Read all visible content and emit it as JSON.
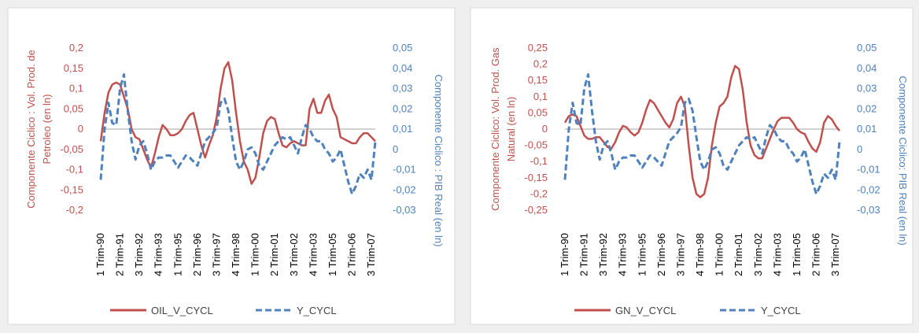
{
  "chart_data": [
    {
      "type": "line",
      "categories": [
        "1 Trim-90",
        null,
        null,
        null,
        null,
        "2 Trim-91",
        null,
        null,
        null,
        null,
        "3 Trim-92",
        null,
        null,
        null,
        null,
        "4 Trim-93",
        null,
        null,
        null,
        null,
        "1 Trim-95",
        null,
        null,
        null,
        null,
        "2 Trim-96",
        null,
        null,
        null,
        null,
        "3 Trim-97",
        null,
        null,
        null,
        null,
        "4 Trim-98",
        null,
        null,
        null,
        null,
        "1 Trim-00",
        null,
        null,
        null,
        null,
        "2 Trim-01",
        null,
        null,
        null,
        null,
        "3 Trim-02",
        null,
        null,
        null,
        null,
        "4 Trim-03",
        null,
        null,
        null,
        null,
        "1 Trim-05",
        null,
        null,
        null,
        null,
        "2 Trim-06",
        null,
        null,
        null,
        null,
        "3 Trim-07",
        null
      ],
      "y_label": [
        "Componente Ciclico : Vol. Prod. de",
        "Petroleo (en ln)"
      ],
      "y2_label": "Componente Ciclico : PIB Real  (en ln)",
      "ylim": [
        -0.2,
        0.2
      ],
      "yticks": [
        {
          "value": -0.2,
          "label": "-0,2"
        },
        {
          "value": -0.15,
          "label": "-0,15"
        },
        {
          "value": -0.1,
          "label": "-0,1"
        },
        {
          "value": -0.05,
          "label": "-0,05"
        },
        0,
        {
          "value": 0.05,
          "label": "0,05"
        },
        {
          "value": 0.1,
          "label": "0,1"
        },
        {
          "value": 0.15,
          "label": "0,15"
        },
        {
          "value": 0.2,
          "label": "0,2"
        }
      ],
      "y2lim": [
        -0.03,
        0.05
      ],
      "y2ticks": [
        {
          "value": -0.03,
          "label": "-0,03"
        },
        {
          "value": -0.02,
          "label": "-0,02"
        },
        {
          "value": -0.01,
          "label": "-0,01"
        },
        0,
        {
          "value": 0.01,
          "label": "0,01"
        },
        {
          "value": 0.02,
          "label": "0,02"
        },
        {
          "value": 0.03,
          "label": "0,03"
        },
        {
          "value": 0.04,
          "label": "0,04"
        },
        {
          "value": 0.05,
          "label": "0,05"
        }
      ],
      "legend": "bottom",
      "series": [
        {
          "name": "OIL_V_CYCL",
          "color": "#c0504d",
          "dash": false,
          "axis": "y",
          "values": [
            -0.03,
            0.04,
            0.09,
            0.11,
            0.115,
            0.11,
            0.08,
            0.05,
            0.0,
            -0.02,
            -0.025,
            -0.05,
            -0.075,
            -0.095,
            -0.06,
            -0.02,
            0.01,
            0.0,
            -0.015,
            -0.015,
            -0.01,
            0.0,
            0.02,
            0.035,
            0.04,
            0.0,
            -0.04,
            -0.07,
            -0.04,
            -0.015,
            0.03,
            0.1,
            0.15,
            0.165,
            0.12,
            0.04,
            -0.03,
            -0.08,
            -0.1,
            -0.135,
            -0.12,
            -0.07,
            -0.01,
            0.02,
            0.03,
            0.025,
            -0.01,
            -0.04,
            -0.045,
            -0.035,
            -0.03,
            -0.035,
            -0.04,
            -0.04,
            0.05,
            0.075,
            0.04,
            0.04,
            0.07,
            0.085,
            0.05,
            0.03,
            -0.02,
            -0.025,
            -0.03,
            -0.035,
            -0.035,
            -0.02,
            -0.01,
            -0.01,
            -0.02,
            -0.03
          ]
        },
        {
          "name": "Y_CYCL",
          "color": "#4f81bd",
          "dash": true,
          "axis": "y2",
          "values": [
            -0.015,
            0.01,
            0.023,
            0.013,
            0.012,
            0.03,
            0.037,
            0.019,
            0.004,
            -0.005,
            0.002,
            0.004,
            -0.002,
            -0.01,
            -0.006,
            -0.004,
            -0.004,
            -0.003,
            -0.003,
            -0.006,
            -0.009,
            -0.006,
            -0.003,
            -0.004,
            -0.006,
            -0.008,
            -0.002,
            0.004,
            0.006,
            0.008,
            0.011,
            0.023,
            0.025,
            0.019,
            0.006,
            -0.006,
            -0.01,
            -0.006,
            0.0,
            0.001,
            -0.002,
            -0.008,
            -0.01,
            -0.006,
            -0.002,
            0.002,
            0.004,
            0.006,
            0.005,
            0.006,
            0.002,
            -0.002,
            0.006,
            0.012,
            0.01,
            0.006,
            0.004,
            0.004,
            0.0,
            -0.002,
            -0.006,
            -0.004,
            0.0,
            -0.008,
            -0.016,
            -0.022,
            -0.018,
            -0.012,
            -0.014,
            -0.01,
            -0.015,
            0.004
          ]
        }
      ]
    },
    {
      "type": "line",
      "categories": [
        "1 Trim-90",
        null,
        null,
        null,
        null,
        "2 Trim-91",
        null,
        null,
        null,
        null,
        "3 Trim-92",
        null,
        null,
        null,
        null,
        "4 Trim-93",
        null,
        null,
        null,
        null,
        "1 Trim-95",
        null,
        null,
        null,
        null,
        "2 Trim-96",
        null,
        null,
        null,
        null,
        "3 Trim-97",
        null,
        null,
        null,
        null,
        "4 Trim-98",
        null,
        null,
        null,
        null,
        "1 Trim-00",
        null,
        null,
        null,
        null,
        "2 Trim-01",
        null,
        null,
        null,
        null,
        "3 Trim-02",
        null,
        null,
        null,
        null,
        "4 Trim-03",
        null,
        null,
        null,
        null,
        "1 Trim-05",
        null,
        null,
        null,
        null,
        "2 Trim-06",
        null,
        null,
        null,
        null,
        "3 Trim-07",
        null
      ],
      "y_label": [
        "Componente Ciclico: Vol. Prod. Gas",
        "Natural (en ln)"
      ],
      "y2_label": "Componente Ciclico: PIB Real  (en ln)",
      "ylim": [
        -0.25,
        0.25
      ],
      "yticks": [
        {
          "value": -0.25,
          "label": "-0,25"
        },
        {
          "value": -0.2,
          "label": "-0,2"
        },
        {
          "value": -0.15,
          "label": "-0,15"
        },
        {
          "value": -0.1,
          "label": "-0,1"
        },
        {
          "value": -0.05,
          "label": "-0,05"
        },
        0,
        {
          "value": 0.05,
          "label": "0,05"
        },
        {
          "value": 0.1,
          "label": "0,1"
        },
        {
          "value": 0.15,
          "label": "0,15"
        },
        {
          "value": 0.2,
          "label": "0,2"
        },
        {
          "value": 0.25,
          "label": "0,25"
        }
      ],
      "y2lim": [
        -0.03,
        0.05
      ],
      "y2ticks": [
        {
          "value": -0.03,
          "label": "-0,03"
        },
        {
          "value": -0.02,
          "label": "-0,02"
        },
        {
          "value": -0.01,
          "label": "-0,01"
        },
        0,
        {
          "value": 0.01,
          "label": "0,01"
        },
        {
          "value": 0.02,
          "label": "0,02"
        },
        {
          "value": 0.03,
          "label": "0,03"
        },
        {
          "value": 0.04,
          "label": "0,04"
        },
        {
          "value": 0.05,
          "label": "0,05"
        }
      ],
      "legend": "bottom",
      "series": [
        {
          "name": "GN_V_CYCL",
          "color": "#c0504d",
          "dash": false,
          "axis": "y",
          "values": [
            0.02,
            0.04,
            0.045,
            0.04,
            0.01,
            -0.02,
            -0.03,
            -0.03,
            -0.025,
            -0.025,
            -0.04,
            -0.055,
            -0.06,
            -0.04,
            -0.01,
            0.01,
            0.005,
            -0.01,
            -0.02,
            -0.01,
            0.02,
            0.06,
            0.09,
            0.08,
            0.06,
            0.04,
            0.02,
            0.005,
            0.03,
            0.08,
            0.1,
            0.07,
            -0.05,
            -0.15,
            -0.2,
            -0.21,
            -0.2,
            -0.15,
            -0.05,
            0.02,
            0.07,
            0.08,
            0.1,
            0.16,
            0.195,
            0.185,
            0.12,
            0.02,
            -0.05,
            -0.08,
            -0.09,
            -0.09,
            -0.06,
            -0.03,
            0.0,
            0.025,
            0.035,
            0.035,
            0.035,
            0.02,
            0.0,
            -0.01,
            -0.015,
            -0.04,
            -0.06,
            -0.07,
            -0.04,
            0.02,
            0.04,
            0.03,
            0.01,
            -0.005
          ]
        },
        {
          "name": "Y_CYCL",
          "color": "#4f81bd",
          "dash": true,
          "axis": "y2",
          "values": [
            -0.015,
            0.01,
            0.023,
            0.013,
            0.012,
            0.03,
            0.037,
            0.019,
            0.004,
            -0.005,
            0.002,
            0.004,
            -0.002,
            -0.01,
            -0.006,
            -0.004,
            -0.004,
            -0.003,
            -0.003,
            -0.006,
            -0.009,
            -0.006,
            -0.003,
            -0.004,
            -0.006,
            -0.008,
            -0.002,
            0.004,
            0.006,
            0.008,
            0.011,
            0.023,
            0.025,
            0.019,
            0.006,
            -0.006,
            -0.01,
            -0.006,
            0.0,
            0.001,
            -0.002,
            -0.008,
            -0.01,
            -0.006,
            -0.002,
            0.002,
            0.004,
            0.006,
            0.005,
            0.006,
            0.002,
            -0.002,
            0.006,
            0.012,
            0.01,
            0.006,
            0.004,
            0.004,
            0.0,
            -0.002,
            -0.006,
            -0.004,
            0.0,
            -0.008,
            -0.016,
            -0.022,
            -0.018,
            -0.012,
            -0.014,
            -0.01,
            -0.015,
            0.004
          ]
        }
      ]
    }
  ]
}
